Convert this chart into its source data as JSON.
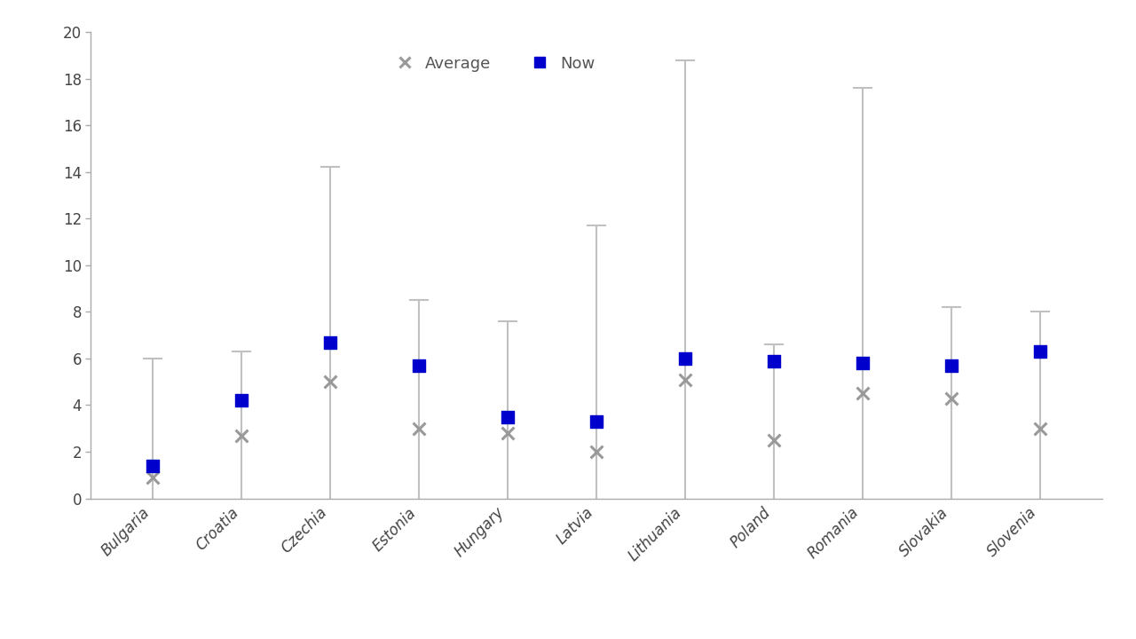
{
  "categories": [
    "Bulgaria",
    "Croatia",
    "Czechia",
    "Estonia",
    "Hungary",
    "Latvia",
    "Lithuania",
    "Poland",
    "Romania",
    "Slovakia",
    "Slovenia"
  ],
  "now": [
    1.4,
    4.2,
    6.7,
    5.7,
    3.5,
    3.3,
    6.0,
    5.9,
    5.8,
    5.7,
    6.3
  ],
  "average": [
    0.9,
    2.7,
    5.0,
    3.0,
    2.8,
    2.0,
    5.1,
    2.5,
    4.5,
    4.3,
    3.0
  ],
  "range_low": [
    0.0,
    0.0,
    0.0,
    0.0,
    0.0,
    0.0,
    0.0,
    0.0,
    0.0,
    0.0,
    0.0
  ],
  "range_high": [
    6.0,
    6.3,
    14.2,
    8.5,
    7.6,
    11.7,
    18.8,
    6.6,
    17.6,
    8.2,
    8.0
  ],
  "ylim": [
    0,
    20
  ],
  "yticks": [
    0,
    2,
    4,
    6,
    8,
    10,
    12,
    14,
    16,
    18,
    20
  ],
  "now_color": "#0000CC",
  "average_color": "#999999",
  "range_color": "#C0C0C0",
  "background_color": "#FFFFFF",
  "legend_average_label": "Average",
  "legend_now_label": "Now",
  "marker_now": "s",
  "marker_average": "x"
}
